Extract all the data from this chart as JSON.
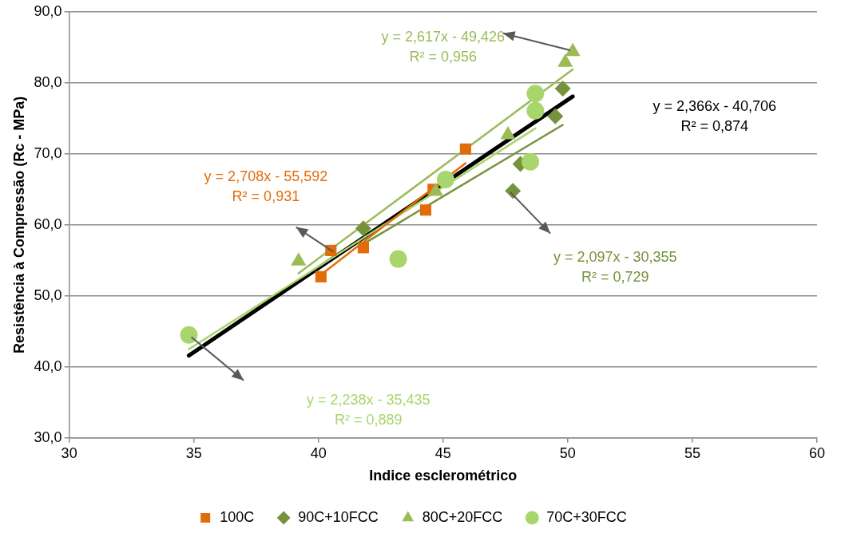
{
  "chart_data": {
    "type": "scatter",
    "xlabel": "Indice esclerométrico",
    "ylabel": "Resistência à Compressão (Rc - MPa)",
    "xlim": [
      30,
      60
    ],
    "xticks": [
      30,
      35,
      40,
      45,
      50,
      55,
      60
    ],
    "ylim": [
      30,
      90
    ],
    "yticks": [
      {
        "value": 30,
        "label": "30,0"
      },
      {
        "value": 40,
        "label": "40,0"
      },
      {
        "value": 50,
        "label": "50,0"
      },
      {
        "value": 60,
        "label": "60,0"
      },
      {
        "value": 70,
        "label": "70,0"
      },
      {
        "value": 80,
        "label": "80,0"
      },
      {
        "value": 90,
        "label": "90,0"
      }
    ],
    "grid": "y",
    "legend": "bottom",
    "series": [
      {
        "name": "100C",
        "color": "#e36c0a",
        "marker": "square",
        "x": [
          40.1,
          40.5,
          41.8,
          44.3,
          44.6,
          45.9
        ],
        "values": [
          52.7,
          56.4,
          56.8,
          62.1,
          65.0,
          70.7
        ]
      },
      {
        "name": "90C+10FCC",
        "color": "#76923c",
        "marker": "diamond",
        "x": [
          41.8,
          47.8,
          48.1,
          49.5,
          49.8
        ],
        "values": [
          59.5,
          64.8,
          68.6,
          75.3,
          79.2
        ]
      },
      {
        "name": "80C+20FCC",
        "color": "#9bbb59",
        "marker": "triangle",
        "x": [
          39.2,
          44.7,
          47.6,
          49.9,
          50.2
        ],
        "values": [
          54.9,
          64.7,
          72.7,
          82.9,
          84.4
        ]
      },
      {
        "name": "70C+30FCC",
        "color": "#a9d66c",
        "marker": "circle",
        "x": [
          34.8,
          43.2,
          45.1,
          48.5,
          48.7,
          48.7
        ],
        "values": [
          44.5,
          55.2,
          66.4,
          68.9,
          76.1,
          78.5
        ]
      },
      {
        "type": "line",
        "color": "#e36c0a",
        "marker": "none",
        "x": [
          40.1,
          45.9
        ],
        "values": [
          53.0,
          68.7
        ]
      },
      {
        "type": "line",
        "color": "#76923c",
        "marker": "none",
        "x": [
          41.8,
          49.8
        ],
        "values": [
          57.3,
          74.1
        ]
      },
      {
        "type": "line",
        "color": "#9bbb59",
        "marker": "none",
        "x": [
          39.2,
          50.2
        ],
        "values": [
          53.2,
          81.9
        ]
      },
      {
        "type": "line",
        "color": "#a9d66c",
        "marker": "none",
        "x": [
          34.8,
          48.7
        ],
        "values": [
          42.5,
          73.6
        ]
      },
      {
        "type": "line",
        "color": "#000000",
        "marker": "none",
        "x": [
          34.8,
          50.2
        ],
        "values": [
          41.6,
          78.1
        ]
      }
    ],
    "annotations": [
      "y = 2,708x - 55,592\nR² = 0,931",
      "y = 2,097x - 30,355\nR² = 0,729",
      "y = 2,617x - 49,426\nR² = 0,956",
      "y = 2,238x - 35,435\nR² = 0,889",
      "y = 2,366x - 40,706\nR² = 0,874"
    ]
  }
}
